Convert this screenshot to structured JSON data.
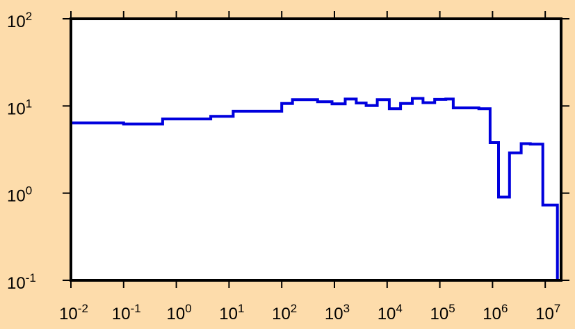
{
  "chart_data": {
    "type": "line",
    "step": true,
    "title": "",
    "xlabel": "",
    "ylabel": "",
    "xscale": "log",
    "yscale": "log",
    "xlim": [
      0.01,
      20000000
    ],
    "ylim": [
      0.1,
      100
    ],
    "grid": false,
    "colors": {
      "background": "#fddcab",
      "plot_area": "#ffffff",
      "series": "#0000dd",
      "axes": "#000000"
    },
    "x_ticks": [
      {
        "value": 0.01,
        "base": "10",
        "exp": "-2"
      },
      {
        "value": 0.1,
        "base": "10",
        "exp": "-1"
      },
      {
        "value": 1,
        "base": "10",
        "exp": "0"
      },
      {
        "value": 10,
        "base": "10",
        "exp": "1"
      },
      {
        "value": 100,
        "base": "10",
        "exp": "2"
      },
      {
        "value": 1000,
        "base": "10",
        "exp": "3"
      },
      {
        "value": 10000,
        "base": "10",
        "exp": "4"
      },
      {
        "value": 100000,
        "base": "10",
        "exp": "5"
      },
      {
        "value": 1000000,
        "base": "10",
        "exp": "6"
      },
      {
        "value": 10000000,
        "base": "10",
        "exp": "7"
      }
    ],
    "y_ticks": [
      {
        "value": 0.1,
        "base": "10",
        "exp": "-1"
      },
      {
        "value": 1,
        "base": "10",
        "exp": "0"
      },
      {
        "value": 10,
        "base": "10",
        "exp": "1"
      },
      {
        "value": 100,
        "base": "10",
        "exp": "2"
      }
    ],
    "series": [
      {
        "bins": [
          {
            "x0": 0.01,
            "x1": 0.1,
            "y": 6.4
          },
          {
            "x0": 0.1,
            "x1": 0.55,
            "y": 6.2
          },
          {
            "x0": 0.55,
            "x1": 4.5,
            "y": 7.1
          },
          {
            "x0": 4.5,
            "x1": 12,
            "y": 7.6
          },
          {
            "x0": 12,
            "x1": 100,
            "y": 8.7
          },
          {
            "x0": 100,
            "x1": 160,
            "y": 10.7
          },
          {
            "x0": 160,
            "x1": 480,
            "y": 11.8
          },
          {
            "x0": 480,
            "x1": 900,
            "y": 11.2
          },
          {
            "x0": 900,
            "x1": 1600,
            "y": 10.6
          },
          {
            "x0": 1600,
            "x1": 2600,
            "y": 12.0
          },
          {
            "x0": 2600,
            "x1": 4000,
            "y": 10.8
          },
          {
            "x0": 4000,
            "x1": 6500,
            "y": 10.1
          },
          {
            "x0": 6500,
            "x1": 11000,
            "y": 11.8
          },
          {
            "x0": 11000,
            "x1": 18000,
            "y": 9.3
          },
          {
            "x0": 18000,
            "x1": 30000,
            "y": 10.7
          },
          {
            "x0": 30000,
            "x1": 48000,
            "y": 12.2
          },
          {
            "x0": 48000,
            "x1": 80000,
            "y": 10.9
          },
          {
            "x0": 80000,
            "x1": 130000,
            "y": 11.9
          },
          {
            "x0": 130000,
            "x1": 180000,
            "y": 12.0
          },
          {
            "x0": 180000,
            "x1": 550000,
            "y": 9.5
          },
          {
            "x0": 550000,
            "x1": 900000,
            "y": 9.3
          },
          {
            "x0": 900000,
            "x1": 1300000,
            "y": 3.8
          },
          {
            "x0": 1300000,
            "x1": 2100000,
            "y": 0.9
          },
          {
            "x0": 2100000,
            "x1": 3500000,
            "y": 2.9
          },
          {
            "x0": 3500000,
            "x1": 5200000,
            "y": 3.7
          },
          {
            "x0": 5200000,
            "x1": 9000000,
            "y": 3.65
          },
          {
            "x0": 9000000,
            "x1": 17000000,
            "y": 0.73
          }
        ]
      }
    ]
  }
}
